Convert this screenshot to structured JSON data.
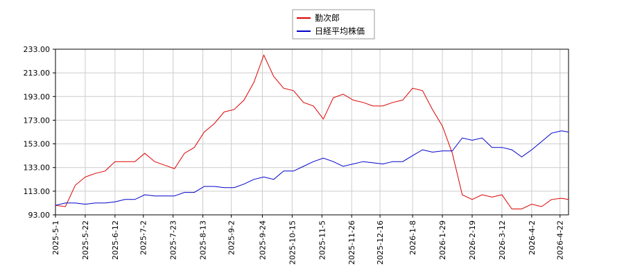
{
  "chart_data": {
    "type": "line",
    "x": [
      "2025-5-1",
      "2025-5-8",
      "2025-5-15",
      "2025-5-22",
      "2025-5-29",
      "2025-6-5",
      "2025-6-12",
      "2025-6-19",
      "2025-6-26",
      "2025-7-3",
      "2025-7-10",
      "2025-7-17",
      "2025-7-24",
      "2025-7-31",
      "2025-8-7",
      "2025-8-14",
      "2025-8-21",
      "2025-8-28",
      "2025-9-4",
      "2025-9-11",
      "2025-9-18",
      "2025-9-25",
      "2025-10-2",
      "2025-10-9",
      "2025-10-16",
      "2025-10-23",
      "2025-10-30",
      "2025-11-6",
      "2025-11-13",
      "2025-11-20",
      "2025-11-27",
      "2025-12-4",
      "2025-12-11",
      "2025-12-18",
      "2025-12-25",
      "2026-1-1",
      "2026-1-8",
      "2026-1-15",
      "2026-1-22",
      "2026-1-29",
      "2026-2-5",
      "2026-2-12",
      "2026-2-19",
      "2026-2-26",
      "2026-3-5",
      "2026-3-12",
      "2026-3-19",
      "2026-3-26",
      "2026-4-2",
      "2026-4-9",
      "2026-4-16",
      "2026-4-23",
      "2026-4-28"
    ],
    "series": [
      {
        "name": "勤次郎",
        "color": "#dd0000",
        "values": [
          101,
          100,
          118,
          125,
          128,
          130,
          138,
          138,
          138,
          145,
          138,
          135,
          132,
          145,
          150,
          163,
          170,
          180,
          182,
          190,
          205,
          228,
          210,
          200,
          198,
          188,
          185,
          174,
          192,
          195,
          190,
          188,
          185,
          185,
          188,
          190,
          200,
          198,
          182,
          168,
          145,
          110,
          106,
          110,
          108,
          110,
          98,
          98,
          102,
          100,
          106,
          107,
          106
        ]
      },
      {
        "name": "日経平均株価",
        "color": "#0000cc",
        "values": [
          101,
          103,
          103,
          102,
          103,
          103,
          104,
          106,
          106,
          110,
          109,
          109,
          109,
          112,
          112,
          117,
          117,
          116,
          116,
          119,
          123,
          125,
          123,
          130,
          130,
          134,
          138,
          141,
          138,
          134,
          136,
          138,
          137,
          136,
          138,
          138,
          143,
          148,
          146,
          147,
          147,
          158,
          156,
          158,
          150,
          150,
          148,
          142,
          148,
          155,
          162,
          164,
          163
        ]
      }
    ],
    "xlim": [
      "2025-5-1",
      "2026-4-28"
    ],
    "xticks": [
      "2025-5-1",
      "2025-5-22",
      "2025-6-12",
      "2025-7-2",
      "2025-7-23",
      "2025-8-13",
      "2025-9-2",
      "2025-9-24",
      "2025-10-15",
      "2025-11-5",
      "2025-11-26",
      "2025-12-16",
      "2026-1-8",
      "2026-1-29",
      "2026-2-19",
      "2026-3-12",
      "2026-4-2",
      "2026-4-22"
    ],
    "ylim": [
      93,
      233
    ],
    "yticks": [
      {
        "value": 93,
        "label": "93.00"
      },
      {
        "value": 113,
        "label": "113.00"
      },
      {
        "value": 133,
        "label": "133.00"
      },
      {
        "value": 153,
        "label": "153.00"
      },
      {
        "value": 173,
        "label": "173.00"
      },
      {
        "value": 193,
        "label": "193.00"
      },
      {
        "value": 213,
        "label": "213.00"
      },
      {
        "value": 233,
        "label": "233.00"
      }
    ],
    "grid": true,
    "legend": "top"
  }
}
